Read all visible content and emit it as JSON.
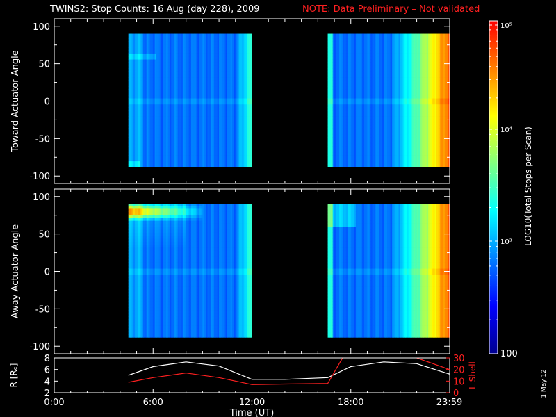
{
  "title": {
    "main": "TWINS2: Stop Counts: 16 Aug (day 228), 2009",
    "note": "NOTE: Data Preliminary – Not validated",
    "note_color": "#ff2020"
  },
  "footer_stamp": "1 May 12",
  "chart_data": [
    {
      "type": "heatmap",
      "panel": "top",
      "ylabel": "Toward Actuator Angle",
      "ylim": [
        -110,
        110
      ],
      "yticks": [
        100,
        50,
        0,
        -50,
        -100
      ],
      "xlim_hours": [
        0,
        24
      ],
      "xticks": [
        "0:00",
        "6:00",
        "12:00",
        "18:00",
        "23:59"
      ],
      "angle_range": [
        -88,
        90
      ],
      "data_intervals_hours": [
        [
          4.5,
          12.0
        ],
        [
          16.6,
          24.0
        ]
      ],
      "description_of_values": "log10 total stops per scan, mostly ~10^2.7 (blue); rises to ~10^4.5 (red/orange) after ~21:00"
    },
    {
      "type": "heatmap",
      "panel": "bottom",
      "ylabel": "Away Actuator Angle",
      "xlabel": "Time (UT)",
      "ylim": [
        -110,
        110
      ],
      "yticks": [
        100,
        50,
        0,
        -50,
        -100
      ],
      "xlim_hours": [
        0,
        24
      ],
      "xticks": [
        "0:00",
        "6:00",
        "12:00",
        "18:00",
        "23:59"
      ],
      "angle_range": [
        -88,
        90
      ],
      "data_intervals_hours": [
        [
          4.5,
          12.0
        ],
        [
          16.6,
          24.0
        ]
      ],
      "description_of_values": "high-count band (orange/red) near +70 to +90 deg between 4:30 and ~9:00; counts rise after ~21:00"
    },
    {
      "type": "line",
      "panel": "ephemeris",
      "xlim_hours": [
        0,
        24
      ],
      "left_axis": {
        "label": "R [Rₑ]",
        "ylim": [
          2,
          8
        ],
        "yticks": [
          2,
          4,
          6,
          8
        ]
      },
      "right_axis": {
        "label": "L Shell",
        "ylim": [
          0,
          30
        ],
        "yticks": [
          0,
          10,
          20,
          30
        ],
        "color": "#ff2020"
      },
      "series": [
        {
          "name": "R [Rₑ]",
          "color": "#ffffff",
          "x": [
            4.5,
            6,
            8,
            10,
            12,
            14,
            16.6,
            18,
            20,
            22,
            24
          ],
          "y": [
            5.0,
            6.5,
            7.3,
            6.6,
            4.3,
            4.3,
            4.6,
            6.5,
            7.3,
            7.0,
            5.2
          ]
        },
        {
          "name": "L Shell",
          "color": "#ff2020",
          "x": [
            4.5,
            6,
            8,
            10,
            12,
            14,
            16.6,
            17.5
          ],
          "y": [
            9.0,
            13,
            17,
            13,
            7,
            7.5,
            8,
            30
          ],
          "x2": [
            22.0,
            24.0
          ],
          "y2": [
            30,
            20
          ]
        }
      ]
    }
  ],
  "colorbar": {
    "label": "LOG10(Total Stops per Scan)",
    "ticks": [
      "100",
      "10³",
      "10⁴",
      "10⁵"
    ],
    "stops": [
      "#000090",
      "#0000ff",
      "#0080ff",
      "#00ffff",
      "#80ff80",
      "#ffff00",
      "#ff8000",
      "#ff0000"
    ]
  }
}
